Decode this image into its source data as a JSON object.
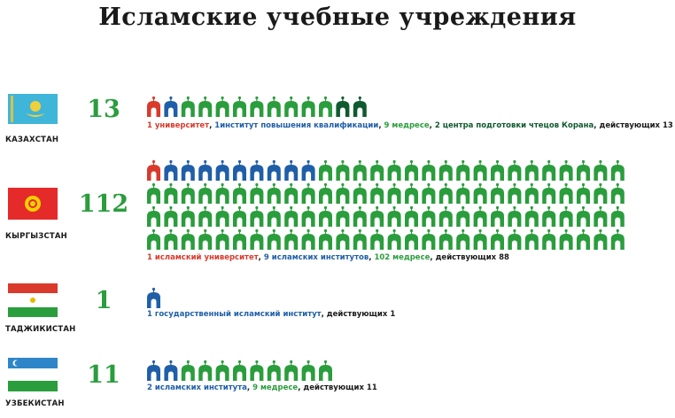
{
  "title": "Исламские учебные учреждения",
  "colors": {
    "university": "#d93a2b",
    "institute": "#1f5fa8",
    "madrasa": "#2a9d3c",
    "quran_center": "#0f5a2e",
    "total": "#2a9d3c"
  },
  "chart_data": {
    "type": "pictograph",
    "title": "Исламские учебные учреждения",
    "countries": [
      {
        "name": "КАЗАХСТАН",
        "total": "13",
        "items": [
          {
            "type": "university",
            "count": 1
          },
          {
            "type": "institute",
            "count": 1
          },
          {
            "type": "madrasa",
            "count": 9
          },
          {
            "type": "quran_center",
            "count": 2
          }
        ],
        "legend": [
          {
            "text": "1 университет",
            "color": "university"
          },
          {
            "text": ", ",
            "color": "plain"
          },
          {
            "text": "1институт повышения квалификации",
            "color": "institute"
          },
          {
            "text": ", ",
            "color": "plain"
          },
          {
            "text": "9 медресе",
            "color": "madrasa"
          },
          {
            "text": ", ",
            "color": "plain"
          },
          {
            "text": "2 центра подготовки чтецов Корана",
            "color": "quran_center"
          },
          {
            "text": ", действующих 13",
            "color": "plain"
          }
        ]
      },
      {
        "name": "КЫРГЫЗСТАН",
        "total": "112",
        "items": [
          {
            "type": "university",
            "count": 1
          },
          {
            "type": "institute",
            "count": 9
          },
          {
            "type": "madrasa",
            "count": 102
          }
        ],
        "legend": [
          {
            "text": "1 исламский университет",
            "color": "university"
          },
          {
            "text": ", ",
            "color": "plain"
          },
          {
            "text": "9 исламских институтов",
            "color": "institute"
          },
          {
            "text": ", ",
            "color": "plain"
          },
          {
            "text": "102 медресе",
            "color": "madrasa"
          },
          {
            "text": ", действующих 88",
            "color": "plain"
          }
        ]
      },
      {
        "name": "ТАДЖИКИСТАН",
        "total": "1",
        "items": [
          {
            "type": "institute",
            "count": 1
          }
        ],
        "legend": [
          {
            "text": "1 государственный исламский институт",
            "color": "institute"
          },
          {
            "text": ", действующих 1",
            "color": "plain"
          }
        ]
      },
      {
        "name": "УЗБЕКИСТАН",
        "total": "11",
        "items": [
          {
            "type": "institute",
            "count": 2
          },
          {
            "type": "madrasa",
            "count": 9
          }
        ],
        "legend": [
          {
            "text": "2 исламских института",
            "color": "institute"
          },
          {
            "text": ", ",
            "color": "plain"
          },
          {
            "text": "9 медресе",
            "color": "madrasa"
          },
          {
            "text": ", действующих 11",
            "color": "plain"
          }
        ]
      }
    ]
  }
}
